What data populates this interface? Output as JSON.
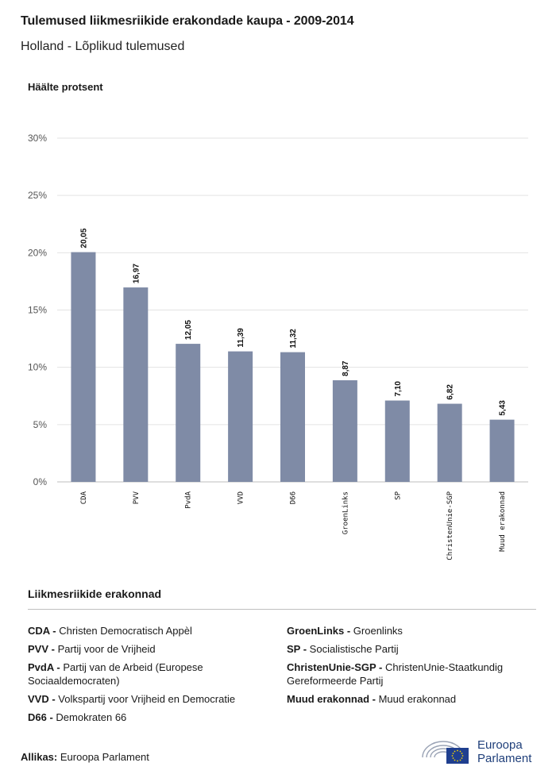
{
  "header": {
    "title": "Tulemused liikmesriikide erakondade kaupa - 2009-2014",
    "subtitle": "Holland - Lõplikud tulemused"
  },
  "chart_data": {
    "type": "bar",
    "ylabel": "Häälte protsent",
    "ylim": [
      0,
      30
    ],
    "yticks": [
      "0%",
      "5%",
      "10%",
      "15%",
      "20%",
      "25%",
      "30%"
    ],
    "categories": [
      "CDA",
      "PVV",
      "PvdA",
      "VVD",
      "D66",
      "GroenLinks",
      "SP",
      "ChristenUnie-SGP",
      "Muud erakonnad"
    ],
    "values": [
      20.05,
      16.97,
      12.05,
      11.39,
      11.32,
      8.87,
      7.1,
      6.82,
      5.43
    ],
    "value_labels": [
      "20,05",
      "16,97",
      "12,05",
      "11,39",
      "11,32",
      "8,87",
      "7,10",
      "6,82",
      "5,43"
    ],
    "bar_color": "#7f8ba6",
    "grid": true
  },
  "legend": {
    "title": "Liikmesriikide erakonnad",
    "left": [
      {
        "abbr": "CDA -",
        "name": "Christen Democratisch Appèl"
      },
      {
        "abbr": "PVV -",
        "name": "Partij voor de Vrijheid"
      },
      {
        "abbr": "PvdA -",
        "name": "Partij van de Arbeid (Europese Sociaaldemocraten)"
      },
      {
        "abbr": "VVD -",
        "name": "Volkspartij voor Vrijheid en Democratie"
      },
      {
        "abbr": "D66 -",
        "name": "Demokraten 66"
      }
    ],
    "right": [
      {
        "abbr": "GroenLinks -",
        "name": "Groenlinks"
      },
      {
        "abbr": "SP -",
        "name": "Socialistische Partij"
      },
      {
        "abbr": "ChristenUnie-SGP -",
        "name": "ChristenUnie-Staatkundig Gereformeerde Partij"
      },
      {
        "abbr": "Muud erakonnad -",
        "name": "Muud erakonnad"
      }
    ]
  },
  "footer": {
    "source_label": "Allikas:",
    "source_value": "Euroopa Parlament",
    "logo_line1": "Euroopa",
    "logo_line2": "Parlament"
  }
}
